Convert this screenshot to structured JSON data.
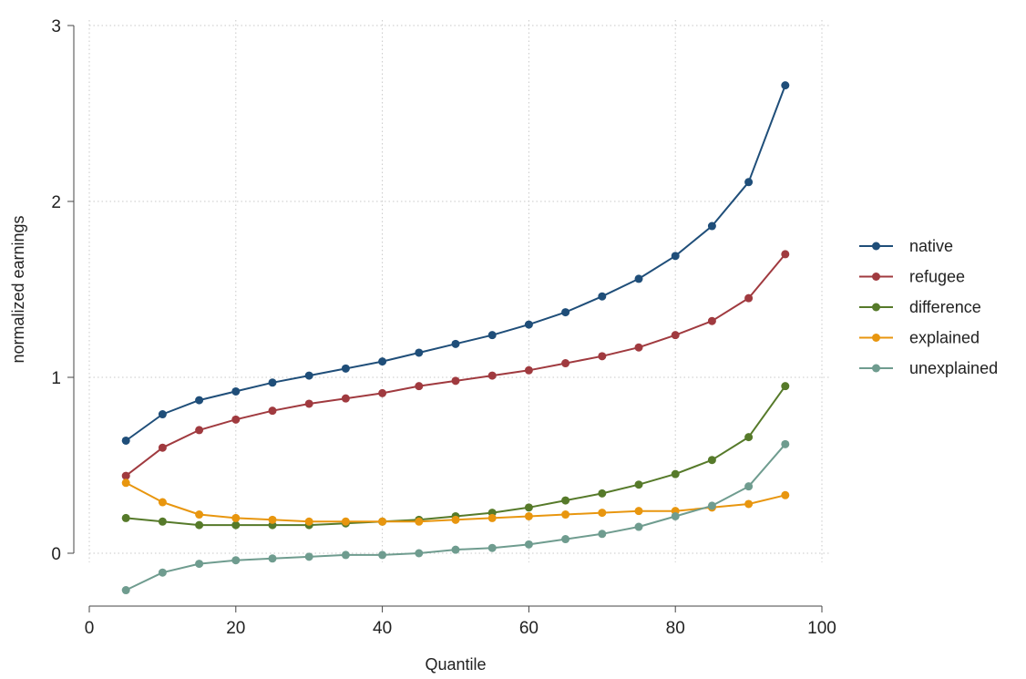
{
  "chart_data": {
    "type": "line",
    "xlabel": "Quantile",
    "ylabel": "normalized earnings",
    "xlim": [
      0,
      100
    ],
    "ylim": [
      0,
      3
    ],
    "xticks": [
      0,
      20,
      40,
      60,
      80,
      100
    ],
    "yticks": [
      0,
      1,
      2,
      3
    ],
    "grid": true,
    "legend_position": "right",
    "x": [
      5,
      10,
      15,
      20,
      25,
      30,
      35,
      40,
      45,
      50,
      55,
      60,
      65,
      70,
      75,
      80,
      85,
      90,
      95
    ],
    "series": [
      {
        "name": "native",
        "color": "#1f4e79",
        "values": [
          0.64,
          0.79,
          0.87,
          0.92,
          0.97,
          1.01,
          1.05,
          1.09,
          1.14,
          1.19,
          1.24,
          1.3,
          1.37,
          1.46,
          1.56,
          1.69,
          1.86,
          2.11,
          2.66
        ]
      },
      {
        "name": "refugee",
        "color": "#a03a3f",
        "values": [
          0.44,
          0.6,
          0.7,
          0.76,
          0.81,
          0.85,
          0.88,
          0.91,
          0.95,
          0.98,
          1.01,
          1.04,
          1.08,
          1.12,
          1.17,
          1.24,
          1.32,
          1.45,
          1.7
        ]
      },
      {
        "name": "difference",
        "color": "#567a2a",
        "values": [
          0.2,
          0.18,
          0.16,
          0.16,
          0.16,
          0.16,
          0.17,
          0.18,
          0.19,
          0.21,
          0.23,
          0.26,
          0.3,
          0.34,
          0.39,
          0.45,
          0.53,
          0.66,
          0.95
        ]
      },
      {
        "name": "explained",
        "color": "#e8960f",
        "values": [
          0.4,
          0.29,
          0.22,
          0.2,
          0.19,
          0.18,
          0.18,
          0.18,
          0.18,
          0.19,
          0.2,
          0.21,
          0.22,
          0.23,
          0.24,
          0.24,
          0.26,
          0.28,
          0.33
        ]
      },
      {
        "name": "unexplained",
        "color": "#6f9c8f",
        "values": [
          -0.21,
          -0.11,
          -0.06,
          -0.04,
          -0.03,
          -0.02,
          -0.01,
          -0.01,
          0.0,
          0.02,
          0.03,
          0.05,
          0.08,
          0.11,
          0.15,
          0.21,
          0.27,
          0.38,
          0.62
        ]
      }
    ]
  }
}
